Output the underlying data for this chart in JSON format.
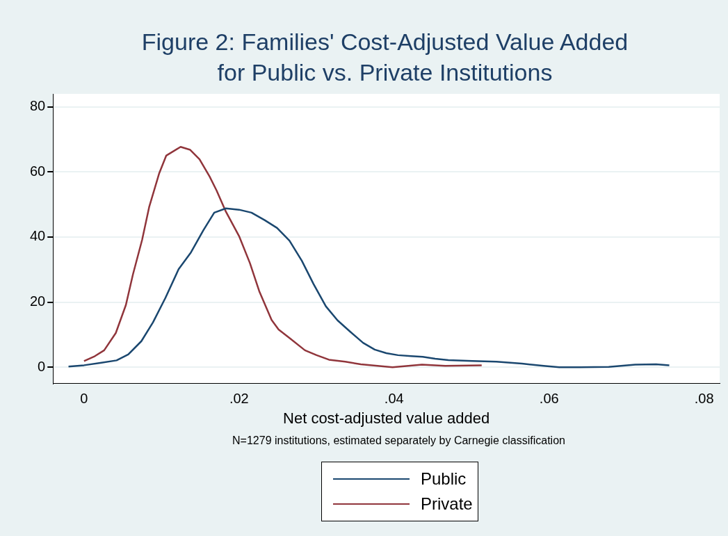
{
  "chart_data": {
    "type": "line",
    "title": "Figure 2: Families' Cost-Adjusted Value Added\nfor Public vs. Private Institutions",
    "xlabel": "Net cost-adjusted value added",
    "annotations": [
      "N=1279 institutions, estimated separately by Carnegie classification"
    ],
    "xlim": [
      -0.004,
      0.082
    ],
    "ylim": [
      -5,
      84
    ],
    "xticks": [
      {
        "value": 0,
        "label": "0"
      },
      {
        "value": 0.02,
        "label": ".02"
      },
      {
        "value": 0.04,
        "label": ".04"
      },
      {
        "value": 0.06,
        "label": ".06"
      },
      {
        "value": 0.08,
        "label": ".08"
      }
    ],
    "yticks": [
      0,
      20,
      40,
      60,
      80
    ],
    "grid": "y",
    "legend": "bottom",
    "marker": "none",
    "line_style": "solid",
    "series": [
      {
        "name": "Public",
        "color": "#1a476f",
        "x": [
          -0.002,
          0,
          0.0021,
          0.0042,
          0.0057,
          0.0074,
          0.0089,
          0.0105,
          0.0122,
          0.0138,
          0.0154,
          0.0168,
          0.0183,
          0.02,
          0.0216,
          0.0233,
          0.0249,
          0.0265,
          0.0281,
          0.0296,
          0.0312,
          0.0327,
          0.0343,
          0.036,
          0.0375,
          0.039,
          0.0405,
          0.0422,
          0.0437,
          0.0453,
          0.047,
          0.0501,
          0.0532,
          0.0565,
          0.0593,
          0.0613,
          0.064,
          0.0677,
          0.0711,
          0.0738,
          0.0755
        ],
        "values": [
          0.2,
          0.6,
          1.3,
          2.1,
          3.9,
          8,
          13.8,
          21.3,
          30.1,
          35.3,
          42.1,
          47.5,
          48.8,
          48.4,
          47.5,
          45.2,
          42.8,
          38.9,
          32.7,
          25.6,
          18.7,
          14.4,
          11,
          7.5,
          5.4,
          4.3,
          3.7,
          3.4,
          3.2,
          2.6,
          2.2,
          1.9,
          1.7,
          1.1,
          0.4,
          0,
          0,
          0.1,
          0.8,
          0.9,
          0.6
        ]
      },
      {
        "name": "Private",
        "color": "#90353b",
        "x": [
          0,
          0.0014,
          0.0026,
          0.0041,
          0.0054,
          0.0063,
          0.0075,
          0.0084,
          0.0097,
          0.0106,
          0.01246,
          0.0137,
          0.0149,
          0.0162,
          0.0171,
          0.0183,
          0.02,
          0.0214,
          0.0226,
          0.0242,
          0.0251,
          0.0266,
          0.0285,
          0.03,
          0.0316,
          0.0337,
          0.0357,
          0.0398,
          0.0436,
          0.0466,
          0.0513
        ],
        "values": [
          1.9,
          3.4,
          5.2,
          10.5,
          19.1,
          28.4,
          39.2,
          49.2,
          59.6,
          65,
          67.7,
          66.8,
          63.9,
          58.6,
          54.3,
          47.8,
          40.3,
          32,
          23.4,
          14.5,
          11.6,
          8.8,
          5.2,
          3.7,
          2.3,
          1.7,
          0.9,
          0,
          0.8,
          0.4,
          0.6
        ]
      }
    ]
  }
}
